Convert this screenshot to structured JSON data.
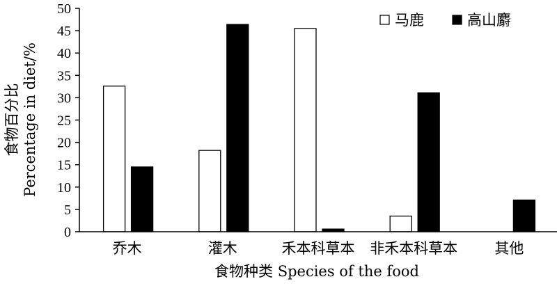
{
  "chart_data": {
    "type": "bar",
    "categories": [
      "乔木",
      "灌木",
      "禾本科草本",
      "非禾本科草本",
      "其他"
    ],
    "series": [
      {
        "name": "马鹿",
        "values": [
          32.6,
          18.2,
          45.5,
          3.5,
          0
        ],
        "fill": "#ffffff",
        "stroke": "#000000"
      },
      {
        "name": "高山麝",
        "values": [
          14.5,
          46.4,
          0.6,
          31.1,
          7.1
        ],
        "fill": "#000000",
        "stroke": "#000000"
      }
    ],
    "xlabel": "食物种类 Species of the food",
    "ylabel_cn": "食物百分比",
    "ylabel_en": "Percentage in diet/%",
    "ylim": [
      0,
      50
    ],
    "yticks": [
      0,
      5,
      10,
      15,
      20,
      25,
      30,
      35,
      40,
      45,
      50
    ],
    "grid": false,
    "legend_position": "top-right"
  }
}
